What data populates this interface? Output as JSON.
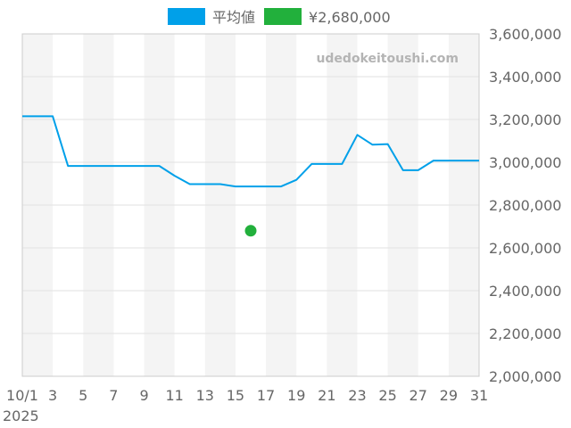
{
  "chart_data": {
    "type": "line",
    "x": [
      1,
      2,
      3,
      4,
      5,
      6,
      7,
      8,
      9,
      10,
      11,
      12,
      13,
      14,
      15,
      16,
      17,
      18,
      19,
      20,
      21,
      22,
      23,
      24,
      25,
      26,
      27,
      28,
      29,
      30,
      31
    ],
    "series": [
      {
        "name": "平均値",
        "color": "#00a0e9",
        "values": [
          3215000,
          3215000,
          3215000,
          2983000,
          2983000,
          2983000,
          2983000,
          2983000,
          2983000,
          2983000,
          2937000,
          2898000,
          2898000,
          2898000,
          2887000,
          2887000,
          2887000,
          2887000,
          2918000,
          2992000,
          2992000,
          2992000,
          3128000,
          3082000,
          3085000,
          2963000,
          2963000,
          3008000,
          3008000,
          3008000,
          3008000
        ]
      }
    ],
    "points": [
      {
        "name": "¥2,680,000",
        "color": "#22b03c",
        "x": 16,
        "y": 2680000
      }
    ],
    "ylim": [
      2000000,
      3600000
    ],
    "y_ticks": [
      "2,000,000",
      "2,200,000",
      "2,400,000",
      "2,600,000",
      "2,800,000",
      "3,000,000",
      "3,200,000",
      "3,400,000",
      "3,600,000"
    ],
    "x_ticks": [
      "10/1",
      "3",
      "5",
      "7",
      "9",
      "11",
      "13",
      "15",
      "17",
      "19",
      "21",
      "23",
      "25",
      "27",
      "29",
      "31"
    ],
    "x_sub_label": "2025",
    "legend": {
      "position": "top"
    },
    "grid": true
  },
  "watermark": "udedokeitoushi.com"
}
